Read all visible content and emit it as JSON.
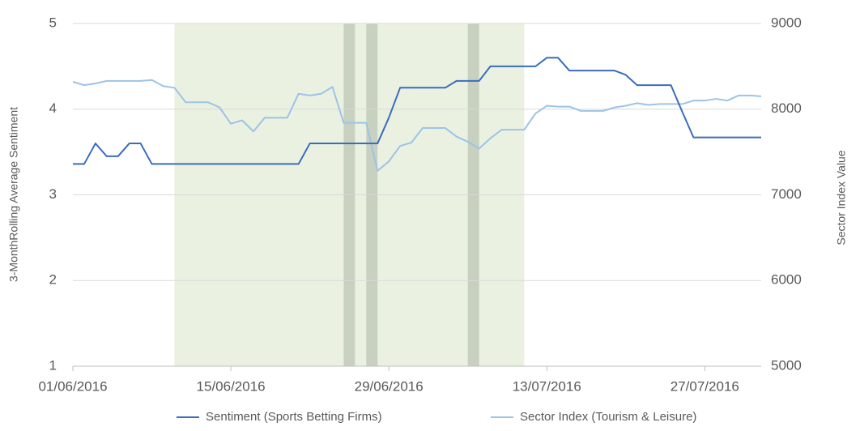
{
  "chart_data": {
    "type": "line",
    "y_label": "3-MonthRolling Average Sentiment",
    "y2_label": "Sector Index Value",
    "x": [
      "2016-06-01",
      "2016-06-02",
      "2016-06-03",
      "2016-06-04",
      "2016-06-05",
      "2016-06-06",
      "2016-06-07",
      "2016-06-08",
      "2016-06-09",
      "2016-06-10",
      "2016-06-11",
      "2016-06-12",
      "2016-06-13",
      "2016-06-14",
      "2016-06-15",
      "2016-06-16",
      "2016-06-17",
      "2016-06-18",
      "2016-06-19",
      "2016-06-20",
      "2016-06-21",
      "2016-06-22",
      "2016-06-23",
      "2016-06-24",
      "2016-06-25",
      "2016-06-26",
      "2016-06-27",
      "2016-06-28",
      "2016-06-29",
      "2016-06-30",
      "2016-07-01",
      "2016-07-02",
      "2016-07-03",
      "2016-07-04",
      "2016-07-05",
      "2016-07-06",
      "2016-07-07",
      "2016-07-08",
      "2016-07-09",
      "2016-07-10",
      "2016-07-11",
      "2016-07-12",
      "2016-07-13",
      "2016-07-14",
      "2016-07-15",
      "2016-07-16",
      "2016-07-17",
      "2016-07-18",
      "2016-07-19",
      "2016-07-20",
      "2016-07-21",
      "2016-07-22",
      "2016-07-23",
      "2016-07-24",
      "2016-07-25",
      "2016-07-26",
      "2016-07-27",
      "2016-07-28",
      "2016-07-29",
      "2016-07-30",
      "2016-07-31",
      "2016-08-01"
    ],
    "xlim": [
      "2016-06-01",
      "2016-08-01"
    ],
    "xticks": [
      {
        "value": "2016-06-01",
        "label": "01/06/2016"
      },
      {
        "value": "2016-06-15",
        "label": "15/06/2016"
      },
      {
        "value": "2016-06-29",
        "label": "29/06/2016"
      },
      {
        "value": "2016-07-13",
        "label": "13/07/2016"
      },
      {
        "value": "2016-07-27",
        "label": "27/07/2016"
      }
    ],
    "ylim": [
      1,
      5
    ],
    "yticks": [
      1,
      2,
      3,
      4,
      5
    ],
    "y2lim": [
      5000,
      9000
    ],
    "y2ticks": [
      5000,
      6000,
      7000,
      8000,
      9000
    ],
    "grid": true,
    "shaded_regions": [
      {
        "start": "2016-06-10",
        "end": "2016-07-11",
        "color": "#eaf1e1"
      },
      {
        "start": "2016-06-25",
        "end": "2016-06-26",
        "color": "#c8d0bf"
      },
      {
        "start": "2016-06-27",
        "end": "2016-06-28",
        "color": "#c8d0bf"
      },
      {
        "start": "2016-07-06",
        "end": "2016-07-07",
        "color": "#c8d0bf"
      }
    ],
    "series": [
      {
        "name": "Sentiment (Sports Betting Firms)",
        "color": "#3a6cbf",
        "values": [
          3.36,
          3.36,
          3.6,
          3.45,
          3.45,
          3.6,
          3.6,
          3.36,
          3.36,
          3.36,
          3.36,
          3.36,
          3.36,
          3.36,
          3.36,
          3.36,
          3.36,
          3.36,
          3.36,
          3.36,
          3.36,
          3.6,
          3.6,
          3.6,
          3.6,
          3.6,
          3.6,
          3.6,
          3.9,
          4.25,
          4.25,
          4.25,
          4.25,
          4.25,
          4.33,
          4.33,
          4.33,
          4.5,
          4.5,
          4.5,
          4.5,
          4.5,
          4.6,
          4.6,
          4.45,
          4.45,
          4.45,
          4.45,
          4.45,
          4.4,
          4.28,
          4.28,
          4.28,
          4.28,
          3.97,
          3.67,
          3.67,
          3.67,
          3.67,
          3.67,
          3.67,
          3.67
        ]
      },
      {
        "name": "Sector Index (Tourism & Leisure)",
        "color": "#9dc3e6",
        "axis": "y2",
        "values": [
          8320,
          8280,
          8300,
          8330,
          8330,
          8330,
          8330,
          8340,
          8270,
          8250,
          8080,
          8080,
          8080,
          8020,
          7830,
          7870,
          7740,
          7900,
          7900,
          7900,
          8180,
          8160,
          8180,
          8260,
          7840,
          7840,
          7840,
          7280,
          7390,
          7570,
          7610,
          7780,
          7780,
          7780,
          7680,
          7620,
          7540,
          7660,
          7760,
          7760,
          7760,
          7950,
          8040,
          8030,
          8030,
          7980,
          7980,
          7980,
          8020,
          8040,
          8070,
          8050,
          8060,
          8060,
          8060,
          8100,
          8100,
          8120,
          8100,
          8160,
          8160,
          8150
        ]
      }
    ]
  }
}
